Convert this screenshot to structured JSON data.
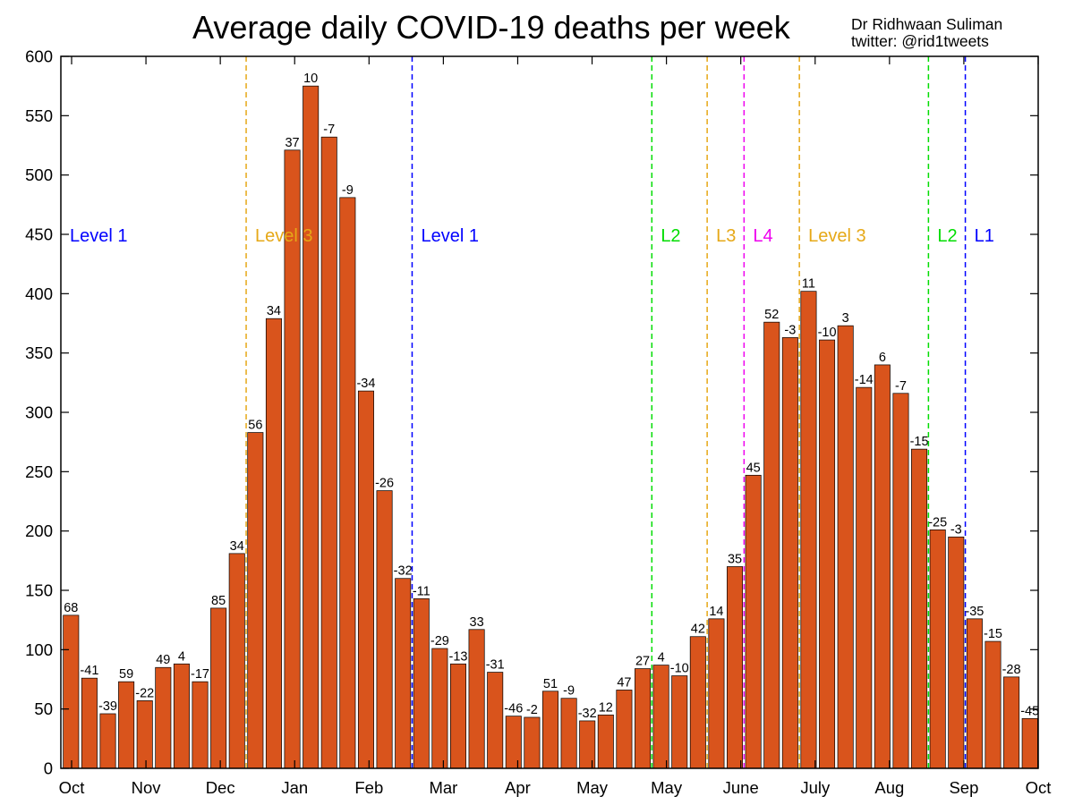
{
  "header": {
    "title": "Average daily COVID-19 deaths per week",
    "author": "Dr Ridhwaan Suliman",
    "twitter": "twitter: @rid1tweets"
  },
  "colors": {
    "bar": "#D9541C",
    "bar_border": "#000000"
  },
  "chart_data": {
    "type": "bar",
    "title": "Average daily COVID-19 deaths per week",
    "xlabel": "",
    "ylabel": "",
    "ylim": [
      0,
      600
    ],
    "yticks": [
      0,
      50,
      100,
      150,
      200,
      250,
      300,
      350,
      400,
      450,
      500,
      550,
      600
    ],
    "grid": false,
    "xtick_labels": [
      "Oct",
      "Nov",
      "Dec",
      "Jan",
      "Feb",
      "Mar",
      "Apr",
      "May",
      "May",
      "June",
      "July",
      "Aug",
      "Sep",
      "Oct"
    ],
    "values": [
      129,
      76,
      46,
      73,
      57,
      85,
      88,
      73,
      135,
      181,
      283,
      379,
      521,
      575,
      532,
      481,
      318,
      234,
      160,
      143,
      101,
      88,
      117,
      81,
      44,
      43,
      65,
      59,
      40,
      45,
      66,
      84,
      87,
      78,
      111,
      126,
      170,
      247,
      376,
      363,
      402,
      361,
      373,
      321,
      340,
      316,
      269,
      201,
      195,
      126,
      107,
      77,
      42
    ],
    "bar_labels": [
      "68",
      "-41",
      "-39",
      "59",
      "-22",
      "49",
      "4",
      "-17",
      "85",
      "34",
      "56",
      "34",
      "37",
      "10",
      "-7",
      "-9",
      "-34",
      "-26",
      "-32",
      "-11",
      "-29",
      "-13",
      "33",
      "-31",
      "-46",
      "-2",
      "51",
      "-9",
      "-32",
      "12",
      "47",
      "27",
      "4",
      "-10",
      "42",
      "14",
      "35",
      "45",
      "52",
      "-3",
      "11",
      "-10",
      "3",
      "-14",
      "6",
      "-7",
      "-15",
      "-25",
      "-3",
      "-35",
      "-15",
      "-28",
      "-45"
    ],
    "level_markers": [
      {
        "label": "Level 1",
        "color": "#0000FF",
        "after_bar": null
      },
      {
        "label": "Level 3",
        "color": "#E6A817",
        "after_bar": 10
      },
      {
        "label": "Level 1",
        "color": "#0000FF",
        "after_bar": 19
      },
      {
        "label": "L2",
        "color": "#00DD00",
        "after_bar": 32
      },
      {
        "label": "L3",
        "color": "#E6A817",
        "after_bar": 35
      },
      {
        "label": "L4",
        "color": "#EE00EE",
        "after_bar": 37
      },
      {
        "label": "Level 3",
        "color": "#E6A817",
        "after_bar": 40
      },
      {
        "label": "L2",
        "color": "#00DD00",
        "after_bar": 47
      },
      {
        "label": "L1",
        "color": "#0000FF",
        "after_bar": 49
      }
    ]
  }
}
